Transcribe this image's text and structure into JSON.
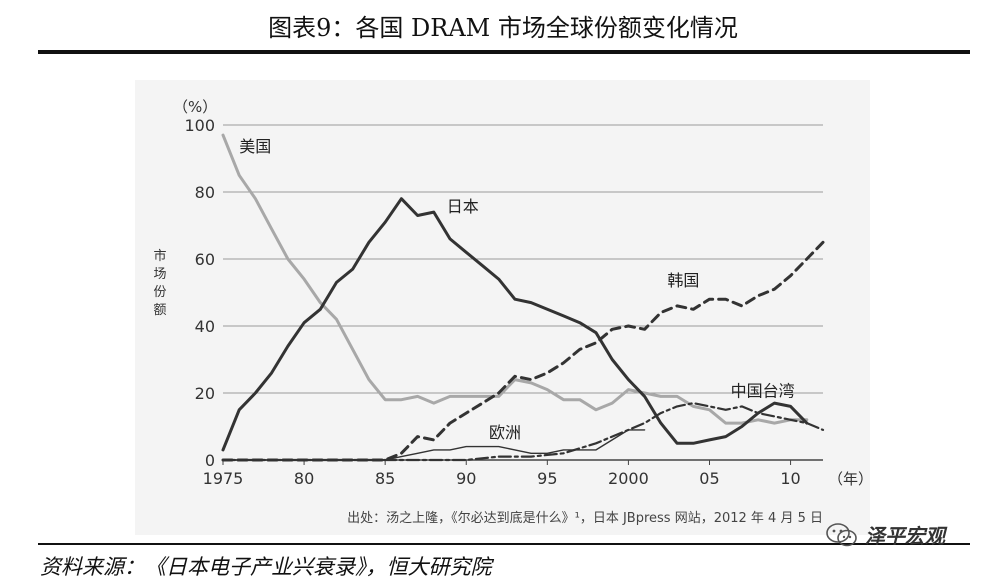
{
  "header": {
    "title": "图表9：各国 DRAM 市场全球份额变化情况"
  },
  "footer": {
    "source": "资料来源：《日本电子产业兴衰录》，恒大研究院"
  },
  "watermark": {
    "text": "泽平宏观"
  },
  "chart_data": {
    "type": "line",
    "title": "",
    "unit_label": "（%）",
    "ylabel": "市场份额",
    "xlabel": "",
    "x_unit_label": "（年）",
    "ylim": [
      0,
      100
    ],
    "xlim": [
      1975,
      2012
    ],
    "yticks": [
      0,
      20,
      40,
      60,
      80,
      100
    ],
    "yticklabels": [
      "0",
      "20",
      "40",
      "60",
      "80",
      "100"
    ],
    "xticks": [
      1975,
      1980,
      1985,
      1990,
      1995,
      2000,
      2005,
      2010
    ],
    "xticklabels": [
      "1975",
      "80",
      "85",
      "90",
      "95",
      "2000",
      "05",
      "10"
    ],
    "grid": true,
    "note": "出处：汤之上隆，《尔必达到底是什么》¹，日本 JBpress 网站，2012 年 4 月 5 日",
    "series": [
      {
        "name": "美国",
        "color": "#a8a8a8",
        "style": "solid",
        "points": [
          [
            1975,
            97
          ],
          [
            1976,
            85
          ],
          [
            1977,
            78
          ],
          [
            1978,
            69
          ],
          [
            1979,
            60
          ],
          [
            1980,
            54
          ],
          [
            1981,
            47
          ],
          [
            1982,
            42
          ],
          [
            1983,
            33
          ],
          [
            1984,
            24
          ],
          [
            1985,
            18
          ],
          [
            1986,
            18
          ],
          [
            1987,
            19
          ],
          [
            1988,
            17
          ],
          [
            1989,
            19
          ],
          [
            1990,
            19
          ],
          [
            1991,
            19
          ],
          [
            1992,
            19
          ],
          [
            1993,
            24
          ],
          [
            1994,
            23
          ],
          [
            1995,
            21
          ],
          [
            1996,
            18
          ],
          [
            1997,
            18
          ],
          [
            1998,
            15
          ],
          [
            1999,
            17
          ],
          [
            2000,
            21
          ],
          [
            2001,
            20
          ],
          [
            2002,
            19
          ],
          [
            2003,
            19
          ],
          [
            2004,
            16
          ],
          [
            2005,
            15
          ],
          [
            2006,
            11
          ],
          [
            2007,
            11
          ],
          [
            2008,
            12
          ],
          [
            2009,
            11
          ],
          [
            2010,
            12
          ],
          [
            2011,
            12
          ]
        ]
      },
      {
        "name": "日本",
        "color": "#333333",
        "style": "solid",
        "points": [
          [
            1975,
            3
          ],
          [
            1976,
            15
          ],
          [
            1977,
            20
          ],
          [
            1978,
            26
          ],
          [
            1979,
            34
          ],
          [
            1980,
            41
          ],
          [
            1981,
            45
          ],
          [
            1982,
            53
          ],
          [
            1983,
            57
          ],
          [
            1984,
            65
          ],
          [
            1985,
            71
          ],
          [
            1986,
            78
          ],
          [
            1987,
            73
          ],
          [
            1988,
            74
          ],
          [
            1989,
            66
          ],
          [
            1990,
            62
          ],
          [
            1991,
            58
          ],
          [
            1992,
            54
          ],
          [
            1993,
            48
          ],
          [
            1994,
            47
          ],
          [
            1995,
            45
          ],
          [
            1996,
            43
          ],
          [
            1997,
            41
          ],
          [
            1998,
            38
          ],
          [
            1999,
            30
          ],
          [
            2000,
            24
          ],
          [
            2001,
            19
          ],
          [
            2002,
            11
          ],
          [
            2003,
            5
          ],
          [
            2004,
            5
          ],
          [
            2005,
            6
          ],
          [
            2006,
            7
          ],
          [
            2007,
            10
          ],
          [
            2008,
            14
          ],
          [
            2009,
            17
          ],
          [
            2010,
            16
          ],
          [
            2011,
            11
          ]
        ]
      },
      {
        "name": "韩国",
        "color": "#333333",
        "style": "dashed",
        "points": [
          [
            1975,
            0
          ],
          [
            1980,
            0
          ],
          [
            1985,
            0
          ],
          [
            1986,
            2
          ],
          [
            1987,
            7
          ],
          [
            1988,
            6
          ],
          [
            1989,
            11
          ],
          [
            1990,
            14
          ],
          [
            1991,
            17
          ],
          [
            1992,
            20
          ],
          [
            1993,
            25
          ],
          [
            1994,
            24
          ],
          [
            1995,
            26
          ],
          [
            1996,
            29
          ],
          [
            1997,
            33
          ],
          [
            1998,
            35
          ],
          [
            1999,
            39
          ],
          [
            2000,
            40
          ],
          [
            2001,
            39
          ],
          [
            2002,
            44
          ],
          [
            2003,
            46
          ],
          [
            2004,
            45
          ],
          [
            2005,
            48
          ],
          [
            2006,
            48
          ],
          [
            2007,
            46
          ],
          [
            2008,
            49
          ],
          [
            2009,
            51
          ],
          [
            2010,
            55
          ],
          [
            2011,
            60
          ],
          [
            2012,
            65
          ]
        ]
      },
      {
        "name": "中国台湾",
        "color": "#333333",
        "style": "dashdot",
        "points": [
          [
            1975,
            0
          ],
          [
            1990,
            0
          ],
          [
            1992,
            1
          ],
          [
            1994,
            1
          ],
          [
            1996,
            2
          ],
          [
            1998,
            5
          ],
          [
            2000,
            9
          ],
          [
            2001,
            11
          ],
          [
            2002,
            14
          ],
          [
            2003,
            16
          ],
          [
            2004,
            17
          ],
          [
            2005,
            16
          ],
          [
            2006,
            15
          ],
          [
            2007,
            16
          ],
          [
            2008,
            14
          ],
          [
            2009,
            13
          ],
          [
            2010,
            12
          ],
          [
            2011,
            11
          ],
          [
            2012,
            9
          ]
        ]
      },
      {
        "name": "欧洲",
        "color": "#333333",
        "style": "thin",
        "points": [
          [
            1975,
            0
          ],
          [
            1985,
            0
          ],
          [
            1986,
            1
          ],
          [
            1987,
            2
          ],
          [
            1988,
            3
          ],
          [
            1989,
            3
          ],
          [
            1990,
            4
          ],
          [
            1991,
            4
          ],
          [
            1992,
            4
          ],
          [
            1993,
            3
          ],
          [
            1994,
            2
          ],
          [
            1995,
            2
          ],
          [
            1996,
            3
          ],
          [
            1997,
            3
          ],
          [
            1998,
            3
          ],
          [
            1999,
            6
          ],
          [
            2000,
            9
          ],
          [
            2001,
            9
          ]
        ]
      }
    ],
    "series_labels": {
      "美国": "美国",
      "日本": "日本",
      "韩国": "韩国",
      "中国台湾": "中国台湾",
      "欧洲": "欧洲"
    }
  }
}
